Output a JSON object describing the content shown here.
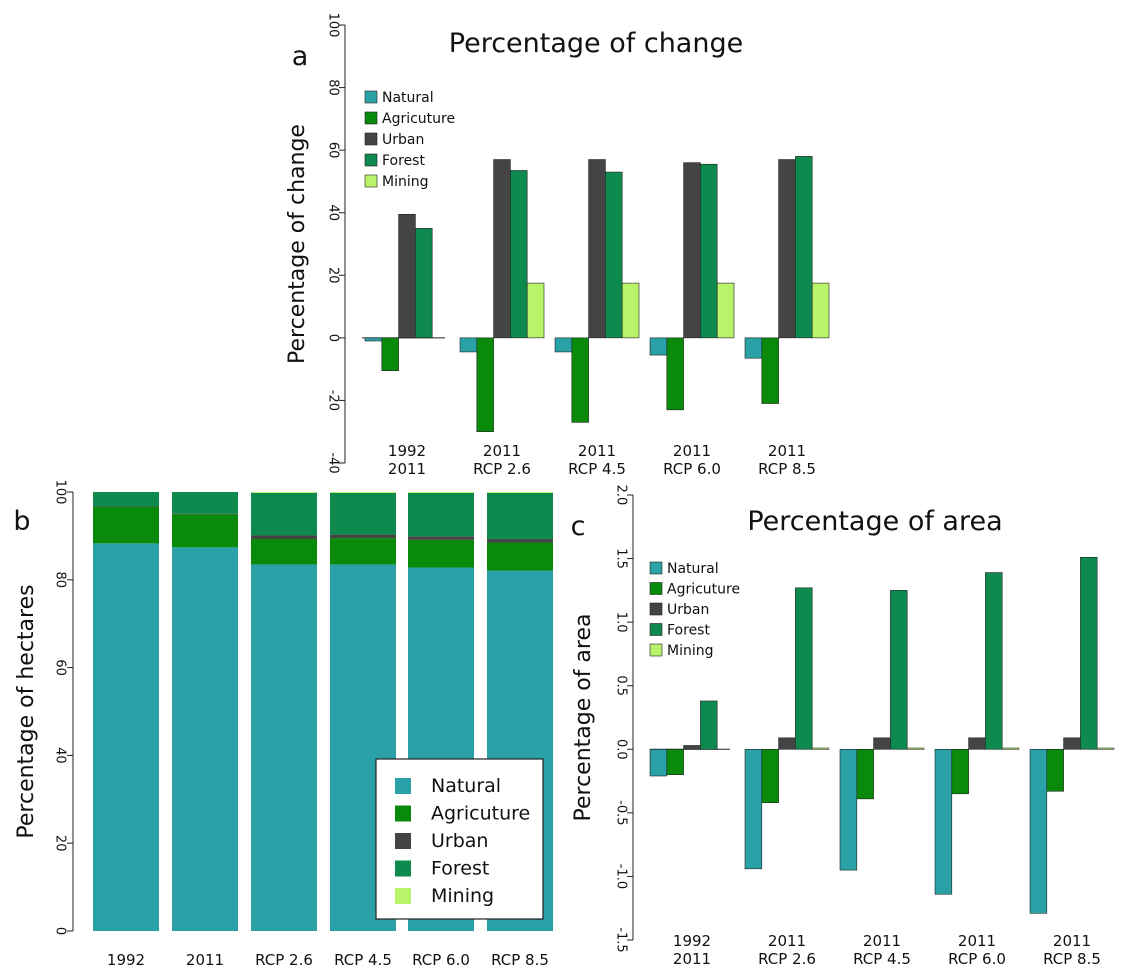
{
  "colors": {
    "Natural": "#2aa1a6",
    "Agricuture": "#0a8a0a",
    "Agriculture": "#0a8a0a",
    "Urban": "#444444",
    "Forest": "#0e8a4e",
    "Mining": "#b8f36a"
  },
  "chart_data": [
    {
      "panel": "a",
      "type": "bar",
      "title": "Percentage of change",
      "xlabel": "",
      "ylabel": "Percentage of change",
      "ylim": [
        -40,
        100
      ],
      "yticks": [
        -40,
        -20,
        0,
        20,
        40,
        60,
        80,
        100
      ],
      "yticklabels": [
        "-40",
        "-20",
        "0",
        "20",
        "40",
        "60",
        "80",
        "100"
      ],
      "categories": [
        [
          "1992",
          "2011"
        ],
        [
          "2011",
          "RCP 2.6"
        ],
        [
          "2011",
          "RCP 4.5"
        ],
        [
          "2011",
          "RCP 6.0"
        ],
        [
          "2011",
          "RCP 8.5"
        ]
      ],
      "legend": [
        "Natural",
        "Agricuture",
        "Urban",
        "Forest",
        "Mining"
      ],
      "legend_position": "top-left",
      "series": [
        {
          "name": "Natural",
          "values": [
            -1,
            -4.5,
            -4.5,
            -5.5,
            -6.5
          ]
        },
        {
          "name": "Agricuture",
          "values": [
            -10.5,
            -30,
            -27,
            -23,
            -21
          ]
        },
        {
          "name": "Urban",
          "values": [
            39.5,
            57,
            57,
            56,
            57
          ]
        },
        {
          "name": "Forest",
          "values": [
            35,
            53.5,
            53,
            55.5,
            58
          ]
        },
        {
          "name": "Mining",
          "values": [
            null,
            17.5,
            17.5,
            17.5,
            17.5
          ]
        }
      ]
    },
    {
      "panel": "b",
      "type": "bar",
      "stacked": true,
      "title": "",
      "xlabel": "",
      "ylabel": "Percentage of hectares",
      "ylim": [
        0,
        100
      ],
      "yticks": [
        0,
        20,
        40,
        60,
        80,
        100
      ],
      "yticklabels": [
        "0",
        "20",
        "40",
        "60",
        "80",
        "100"
      ],
      "categories": [
        "1992",
        "2011",
        "RCP 2.6",
        "RCP 4.5",
        "RCP 6.0",
        "RCP 8.5"
      ],
      "legend": [
        "Natural",
        "Agricuture",
        "Urban",
        "Forest",
        "Mining"
      ],
      "legend_labels": [
        "Natural",
        "Agricuture",
        "Urban",
        "Forest",
        "Mining"
      ],
      "legend_position": "bottom-right",
      "series": [
        {
          "name": "Natural",
          "values": [
            88.3,
            87.4,
            83.5,
            83.5,
            82.8,
            82.1
          ]
        },
        {
          "name": "Agriculture",
          "values": [
            8.3,
            7.5,
            5.8,
            6.0,
            6.3,
            6.4
          ]
        },
        {
          "name": "Urban",
          "values": [
            0.1,
            0.15,
            0.8,
            0.8,
            0.8,
            0.8
          ]
        },
        {
          "name": "Forest",
          "values": [
            3.3,
            4.95,
            9.7,
            9.5,
            9.9,
            10.5
          ]
        },
        {
          "name": "Mining",
          "values": [
            0,
            0,
            0.2,
            0.2,
            0.2,
            0.2
          ]
        }
      ]
    },
    {
      "panel": "c",
      "type": "bar",
      "title": "Percentage of area",
      "xlabel": "",
      "ylabel": "Percentage of area",
      "ylim": [
        -1.5,
        2.0
      ],
      "yticks": [
        -1.5,
        -1.0,
        -0.5,
        0.0,
        0.5,
        1.0,
        1.5,
        2.0
      ],
      "yticklabels": [
        "-1.5",
        "-1.0",
        "-0.5",
        "0.0",
        "0.5",
        "1.0",
        "1.5",
        "2.0"
      ],
      "categories": [
        [
          "1992",
          "2011"
        ],
        [
          "2011",
          "RCP 2.6"
        ],
        [
          "2011",
          "RCP 4.5"
        ],
        [
          "2011",
          "RCP 6.0"
        ],
        [
          "2011",
          "RCP 8.5"
        ]
      ],
      "legend": [
        "Natural",
        "Agricuture",
        "Urban",
        "Forest",
        "Mining"
      ],
      "legend_position": "top-left",
      "series": [
        {
          "name": "Natural",
          "values": [
            -0.21,
            -0.94,
            -0.95,
            -1.14,
            -1.29
          ]
        },
        {
          "name": "Agricuture",
          "values": [
            -0.2,
            -0.42,
            -0.39,
            -0.35,
            -0.33
          ]
        },
        {
          "name": "Urban",
          "values": [
            0.03,
            0.09,
            0.09,
            0.09,
            0.09
          ]
        },
        {
          "name": "Forest",
          "values": [
            0.38,
            1.27,
            1.25,
            1.39,
            1.51
          ]
        },
        {
          "name": "Mining",
          "values": [
            null,
            0.01,
            0.01,
            0.01,
            0.01
          ]
        }
      ]
    }
  ]
}
